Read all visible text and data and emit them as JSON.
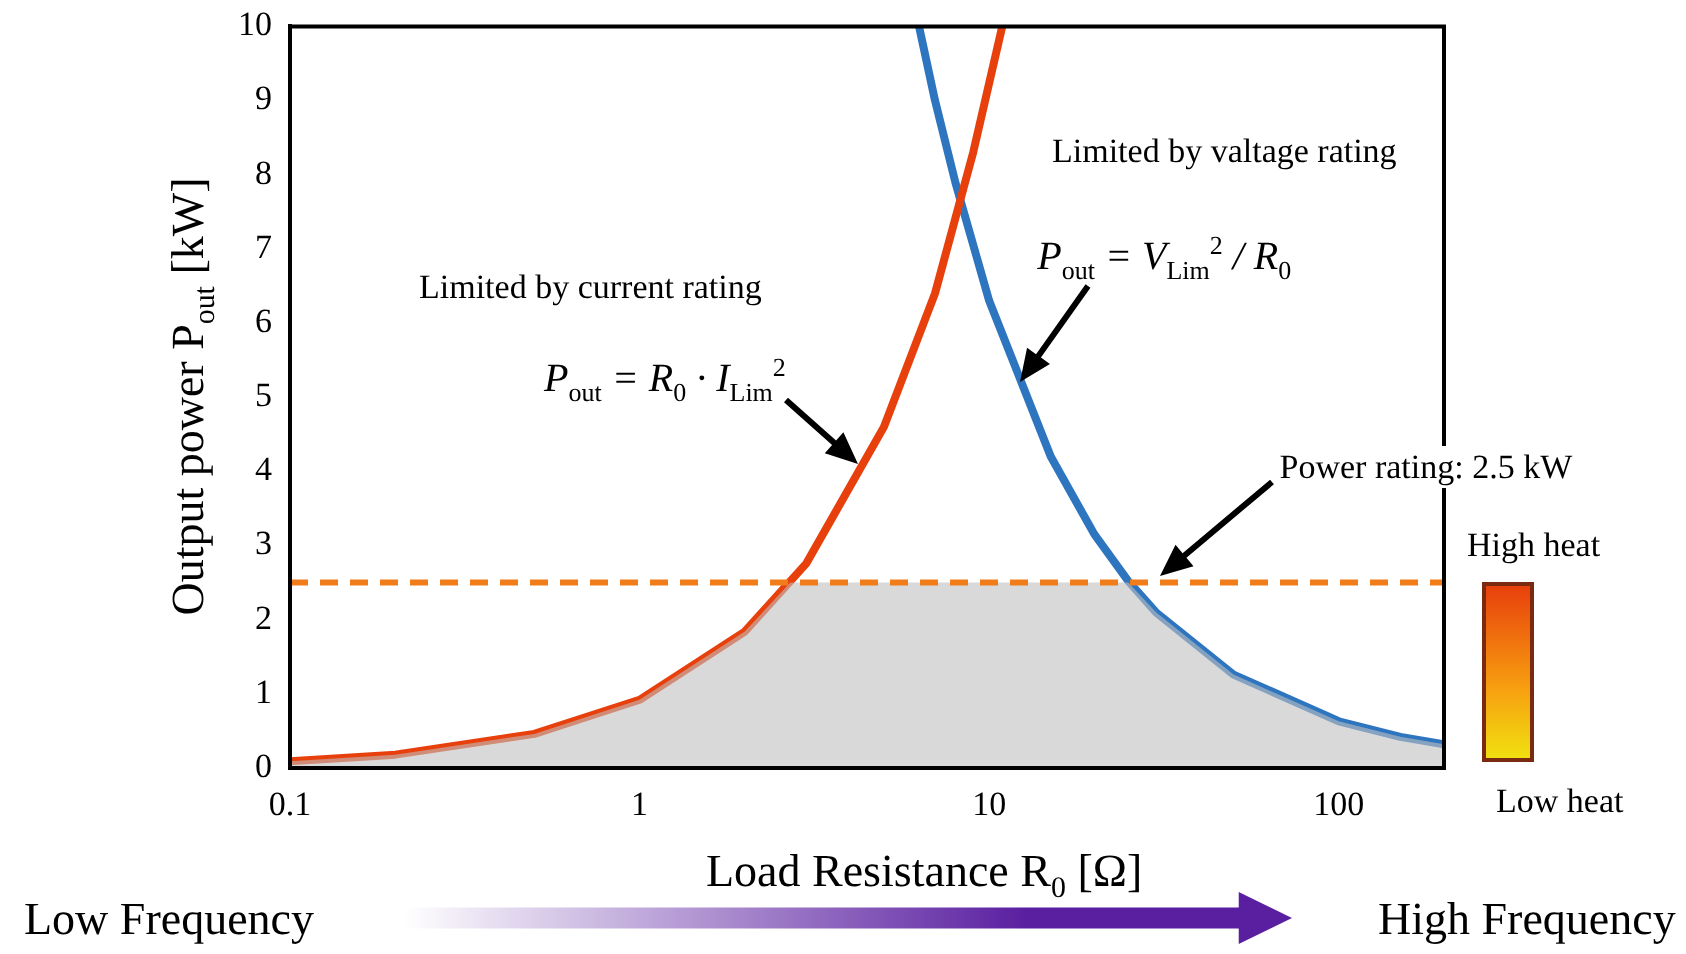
{
  "chart_data": {
    "type": "line",
    "xlabel": "Load Resistance R$_{0}$ [Ω]",
    "ylabel": "Output power P$_{out}$ [kW]",
    "log": "x",
    "xlim": [
      0.1,
      200
    ],
    "xticks": [
      0.1,
      1,
      10,
      100
    ],
    "ylim": [
      0,
      10
    ],
    "yticks": [
      0,
      1,
      2,
      3,
      4,
      5,
      6,
      7,
      8,
      9,
      10
    ],
    "grid": false,
    "series": [
      {
        "type": "area",
        "color": "#bfbfbf",
        "x": [
          0.1,
          0.2,
          0.5,
          1,
          2,
          2.7,
          10,
          25,
          30,
          50,
          100,
          150,
          200
        ],
        "values": [
          0.09,
          0.18,
          0.46,
          0.92,
          1.84,
          2.5,
          2.5,
          2.5,
          2.1,
          1.26,
          0.63,
          0.42,
          0.32
        ]
      },
      {
        "color": "#e8400c",
        "x": [
          0.1,
          0.2,
          0.5,
          1,
          2,
          3,
          5,
          7,
          9,
          10.9
        ],
        "values": [
          0.09,
          0.18,
          0.46,
          0.92,
          1.84,
          2.76,
          4.6,
          6.4,
          8.3,
          10
        ]
      },
      {
        "color": "#2e75c0",
        "x": [
          6.3,
          7,
          8,
          10,
          15,
          20,
          25,
          30,
          50,
          100,
          150,
          200
        ],
        "values": [
          10,
          9,
          7.9,
          6.3,
          4.2,
          3.15,
          2.52,
          2.1,
          1.26,
          0.63,
          0.42,
          0.32
        ]
      }
    ],
    "ref_lines": [
      {
        "axis": "y",
        "value": 2.5,
        "label": "Power rating: 2.5 kW",
        "color": "#f07c1a",
        "line_style": "dashed"
      }
    ],
    "annotations": [
      "Limited by current rating",
      {
        "text": "P$_{out}$ = R$_{0}$ · I$_{Lim}$$^{2}$",
        "x": 4.3,
        "y": 4.1
      },
      "Limited by valtage rating",
      {
        "text": "P$_{out}$ = V$_{Lim}$$^{2}$ / R$_{0}$",
        "x": 12.6,
        "y": 5.2
      },
      "High heat",
      "Low heat",
      "Low Frequency",
      "High Frequency"
    ]
  }
}
